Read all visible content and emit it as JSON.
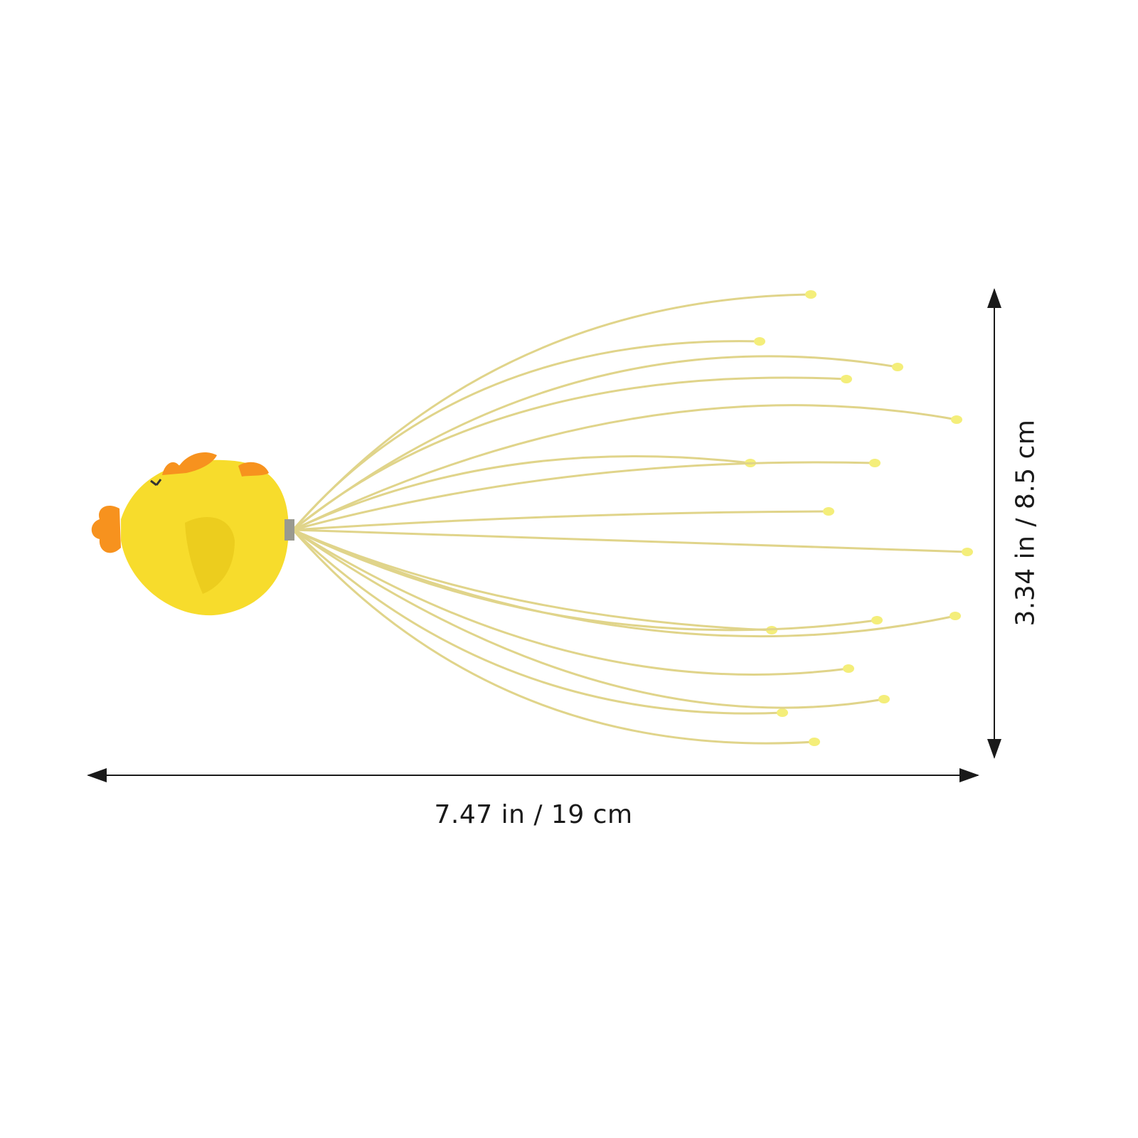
{
  "product": {
    "name_icon": "chick-head-scalp-massager",
    "body_color": "#f7dc2c",
    "accent_color": "#f7921e",
    "wire_color": "#e0d48a",
    "tip_color": "#f4ee7a"
  },
  "dimensions": {
    "width_label": "7.47 in / 19 cm",
    "height_label": "3.34 in / 8.5 cm",
    "arrow_color": "#1a1a1a"
  }
}
